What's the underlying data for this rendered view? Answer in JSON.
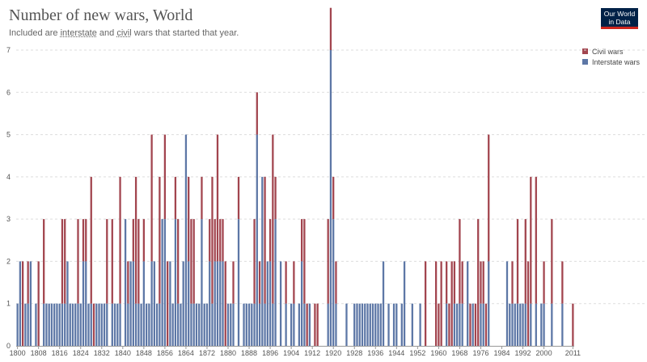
{
  "title": "Number of new wars, World",
  "subtitle": {
    "before": "Included are ",
    "interstate": "interstate",
    "middle": " and ",
    "civil": "civil",
    "after": " wars that started that year."
  },
  "logo": {
    "line1": "Our World",
    "line2": "in Data"
  },
  "colors": {
    "civil": "#a2454f",
    "interstate": "#5d77a6",
    "grid": "#dddddd",
    "axis": "#999999",
    "title": "#555555",
    "logo_bg": "#002147",
    "logo_accent": "#ce261e"
  },
  "chart_data": {
    "type": "bar",
    "stacked": true,
    "title": "Number of new wars, World",
    "subtitle": "Included are interstate and civil wars that started that year.",
    "ylim": [
      0,
      7
    ],
    "y_ticks": [
      0,
      1,
      2,
      3,
      4,
      5,
      6,
      7
    ],
    "x_range": [
      1800,
      2011
    ],
    "x_ticks": [
      "1800",
      "1808",
      "1816",
      "1824",
      "1832",
      "1840",
      "1848",
      "1856",
      "1864",
      "1872",
      "1880",
      "1888",
      "1896",
      "1904",
      "1912",
      "1920",
      "1928",
      "1936",
      "1944",
      "1952",
      "1960",
      "1968",
      "1976",
      "1984",
      "1992",
      "2000",
      "2011"
    ],
    "x_tick_values": [
      1800,
      1808,
      1816,
      1824,
      1832,
      1840,
      1848,
      1856,
      1864,
      1872,
      1880,
      1888,
      1896,
      1904,
      1912,
      1920,
      1928,
      1936,
      1944,
      1952,
      1960,
      1968,
      1976,
      1984,
      1992,
      2000,
      2011
    ],
    "legend_position": "top-right",
    "series": [
      {
        "name": "Interstate wars",
        "color": "#5d77a6",
        "points": [
          [
            1800,
            1
          ],
          [
            1801,
            2
          ],
          [
            1803,
            1
          ],
          [
            1804,
            1
          ],
          [
            1805,
            2
          ],
          [
            1807,
            1
          ],
          [
            1810,
            1
          ],
          [
            1811,
            1
          ],
          [
            1812,
            1
          ],
          [
            1813,
            1
          ],
          [
            1814,
            1
          ],
          [
            1815,
            1
          ],
          [
            1816,
            1
          ],
          [
            1817,
            1
          ],
          [
            1818,
            1
          ],
          [
            1819,
            2
          ],
          [
            1820,
            1
          ],
          [
            1821,
            1
          ],
          [
            1822,
            1
          ],
          [
            1823,
            1
          ],
          [
            1824,
            1
          ],
          [
            1825,
            2
          ],
          [
            1826,
            2
          ],
          [
            1827,
            1
          ],
          [
            1828,
            1
          ],
          [
            1830,
            1
          ],
          [
            1831,
            1
          ],
          [
            1832,
            1
          ],
          [
            1833,
            1
          ],
          [
            1834,
            1
          ],
          [
            1836,
            1
          ],
          [
            1837,
            1
          ],
          [
            1838,
            1
          ],
          [
            1839,
            1
          ],
          [
            1841,
            3
          ],
          [
            1842,
            1
          ],
          [
            1843,
            2
          ],
          [
            1844,
            2
          ],
          [
            1845,
            1
          ],
          [
            1846,
            1
          ],
          [
            1847,
            1
          ],
          [
            1848,
            2
          ],
          [
            1849,
            1
          ],
          [
            1850,
            1
          ],
          [
            1851,
            2
          ],
          [
            1852,
            2
          ],
          [
            1853,
            1
          ],
          [
            1854,
            1
          ],
          [
            1855,
            3
          ],
          [
            1856,
            3
          ],
          [
            1858,
            2
          ],
          [
            1859,
            1
          ],
          [
            1860,
            3
          ],
          [
            1861,
            1
          ],
          [
            1862,
            1
          ],
          [
            1863,
            2
          ],
          [
            1864,
            5
          ],
          [
            1865,
            2
          ],
          [
            1866,
            1
          ],
          [
            1867,
            1
          ],
          [
            1868,
            1
          ],
          [
            1869,
            1
          ],
          [
            1870,
            3
          ],
          [
            1871,
            1
          ],
          [
            1872,
            1
          ],
          [
            1873,
            2
          ],
          [
            1874,
            1
          ],
          [
            1875,
            2
          ],
          [
            1876,
            2
          ],
          [
            1877,
            2
          ],
          [
            1878,
            2
          ],
          [
            1880,
            1
          ],
          [
            1881,
            1
          ],
          [
            1882,
            1
          ],
          [
            1884,
            3
          ],
          [
            1886,
            1
          ],
          [
            1887,
            1
          ],
          [
            1888,
            1
          ],
          [
            1889,
            1
          ],
          [
            1890,
            1
          ],
          [
            1891,
            5
          ],
          [
            1892,
            1
          ],
          [
            1893,
            4
          ],
          [
            1894,
            1
          ],
          [
            1895,
            2
          ],
          [
            1896,
            2
          ],
          [
            1897,
            1
          ],
          [
            1898,
            3
          ],
          [
            1900,
            2
          ],
          [
            1902,
            1
          ],
          [
            1904,
            1
          ],
          [
            1905,
            1
          ],
          [
            1907,
            1
          ],
          [
            1908,
            2
          ],
          [
            1909,
            1
          ],
          [
            1911,
            1
          ],
          [
            1918,
            1
          ],
          [
            1919,
            7
          ],
          [
            1920,
            3
          ],
          [
            1921,
            1
          ],
          [
            1925,
            1
          ],
          [
            1928,
            1
          ],
          [
            1929,
            1
          ],
          [
            1930,
            1
          ],
          [
            1931,
            1
          ],
          [
            1932,
            1
          ],
          [
            1933,
            1
          ],
          [
            1934,
            1
          ],
          [
            1935,
            1
          ],
          [
            1936,
            1
          ],
          [
            1937,
            1
          ],
          [
            1938,
            1
          ],
          [
            1939,
            2
          ],
          [
            1941,
            1
          ],
          [
            1943,
            1
          ],
          [
            1944,
            1
          ],
          [
            1946,
            1
          ],
          [
            1947,
            2
          ],
          [
            1950,
            1
          ],
          [
            1953,
            1
          ],
          [
            1963,
            1
          ],
          [
            1966,
            1
          ],
          [
            1967,
            1
          ],
          [
            1968,
            1
          ],
          [
            1969,
            1
          ],
          [
            1971,
            2
          ],
          [
            1973,
            1
          ],
          [
            1976,
            1
          ],
          [
            1977,
            1
          ],
          [
            1979,
            2
          ],
          [
            1986,
            2
          ],
          [
            1987,
            1
          ],
          [
            1988,
            1
          ],
          [
            1989,
            1
          ],
          [
            1990,
            1
          ],
          [
            1991,
            1
          ],
          [
            1992,
            1
          ],
          [
            1993,
            1
          ],
          [
            1995,
            1
          ],
          [
            1997,
            1
          ],
          [
            1999,
            1
          ],
          [
            2000,
            1
          ],
          [
            2003,
            1
          ],
          [
            2007,
            1
          ]
        ]
      },
      {
        "name": "Civil wars",
        "color": "#a2454f",
        "points": [
          [
            1802,
            2
          ],
          [
            1804,
            1
          ],
          [
            1808,
            2
          ],
          [
            1810,
            2
          ],
          [
            1817,
            2
          ],
          [
            1818,
            2
          ],
          [
            1823,
            2
          ],
          [
            1825,
            1
          ],
          [
            1826,
            1
          ],
          [
            1828,
            3
          ],
          [
            1829,
            1
          ],
          [
            1834,
            2
          ],
          [
            1836,
            2
          ],
          [
            1839,
            3
          ],
          [
            1842,
            1
          ],
          [
            1844,
            1
          ],
          [
            1845,
            3
          ],
          [
            1846,
            2
          ],
          [
            1848,
            1
          ],
          [
            1851,
            3
          ],
          [
            1854,
            3
          ],
          [
            1856,
            2
          ],
          [
            1857,
            2
          ],
          [
            1860,
            1
          ],
          [
            1861,
            2
          ],
          [
            1865,
            2
          ],
          [
            1866,
            2
          ],
          [
            1867,
            2
          ],
          [
            1870,
            1
          ],
          [
            1873,
            1
          ],
          [
            1874,
            3
          ],
          [
            1875,
            1
          ],
          [
            1876,
            3
          ],
          [
            1877,
            1
          ],
          [
            1878,
            1
          ],
          [
            1879,
            2
          ],
          [
            1882,
            1
          ],
          [
            1884,
            1
          ],
          [
            1890,
            2
          ],
          [
            1891,
            1
          ],
          [
            1892,
            1
          ],
          [
            1894,
            3
          ],
          [
            1896,
            1
          ],
          [
            1897,
            4
          ],
          [
            1898,
            1
          ],
          [
            1902,
            1
          ],
          [
            1905,
            1
          ],
          [
            1908,
            1
          ],
          [
            1909,
            2
          ],
          [
            1910,
            1
          ],
          [
            1913,
            1
          ],
          [
            1914,
            1
          ],
          [
            1918,
            2
          ],
          [
            1919,
            1
          ],
          [
            1920,
            1
          ],
          [
            1921,
            1
          ],
          [
            1955,
            2
          ],
          [
            1959,
            2
          ],
          [
            1960,
            1
          ],
          [
            1961,
            2
          ],
          [
            1963,
            1
          ],
          [
            1964,
            1
          ],
          [
            1965,
            2
          ],
          [
            1966,
            1
          ],
          [
            1968,
            2
          ],
          [
            1969,
            1
          ],
          [
            1972,
            1
          ],
          [
            1974,
            1
          ],
          [
            1975,
            3
          ],
          [
            1976,
            1
          ],
          [
            1977,
            1
          ],
          [
            1978,
            1
          ],
          [
            1979,
            3
          ],
          [
            1988,
            1
          ],
          [
            1990,
            2
          ],
          [
            1993,
            2
          ],
          [
            1994,
            2
          ],
          [
            1995,
            3
          ],
          [
            1997,
            3
          ],
          [
            2000,
            1
          ],
          [
            2003,
            2
          ],
          [
            2007,
            1
          ],
          [
            2011,
            1
          ]
        ]
      }
    ]
  }
}
